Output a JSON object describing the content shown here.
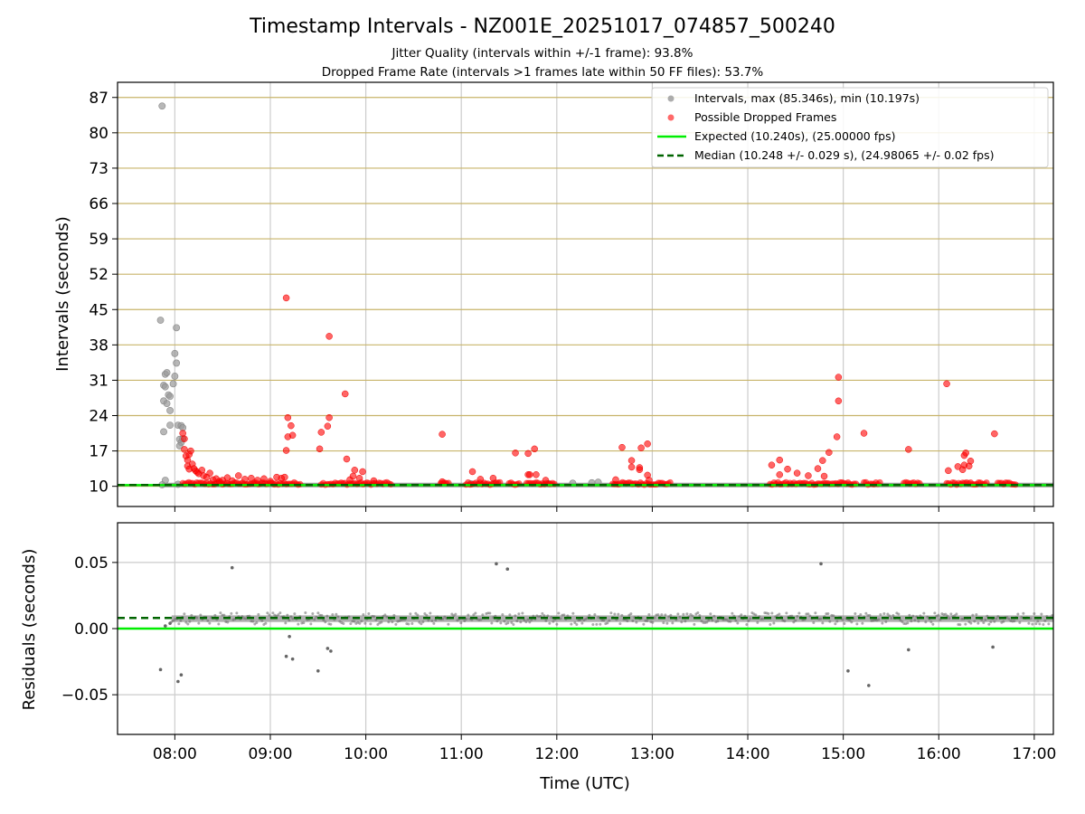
{
  "figure": {
    "title": "Timestamp Intervals - NZ001E_20251017_074857_500240",
    "subtitle_line1": "Jitter Quality (intervals within +/-1 frame): 93.8%",
    "subtitle_line2": "Dropped Frame Rate (intervals >1 frames late within 50 FF files): 53.7%"
  },
  "colors": {
    "intervals": "#808080",
    "dropped": "#ff0000",
    "expected": "#00ee00",
    "median": "#006400",
    "grid_y_top": "#c8b46a",
    "grid": "#cccccc"
  },
  "chart_data": [
    {
      "type": "scatter",
      "panel": "intervals",
      "xlabel": "",
      "ylabel": "Intervals (seconds)",
      "xlim": [
        "07:24",
        "17:12"
      ],
      "ylim": [
        6,
        90
      ],
      "yticks": [
        10,
        17,
        24,
        31,
        38,
        45,
        52,
        59,
        66,
        73,
        80,
        87
      ],
      "ytick_labels": [
        "10",
        "17",
        "24",
        "31",
        "38",
        "45",
        "52",
        "59",
        "66",
        "73",
        "80",
        "87"
      ],
      "grid": true,
      "legend_position": "top-right",
      "legend": [
        {
          "label": "Intervals, max (85.346s), min (10.197s)",
          "style": "marker",
          "color": "#999999"
        },
        {
          "label": "Possible Dropped Frames",
          "style": "marker",
          "color": "#ff4444"
        },
        {
          "label": "Expected (10.240s), (25.00000 fps)",
          "style": "solid",
          "color": "#00ee00"
        },
        {
          "label": "Median (10.248 +/- 0.029 s), (24.98065 +/- 0.02 fps)",
          "style": "dashed",
          "color": "#006400"
        }
      ],
      "expected": 10.24,
      "median": 10.248,
      "baseline_band": {
        "x": [
          "07:52",
          "17:12"
        ],
        "y": [
          9.8,
          10.7
        ]
      },
      "series": [
        {
          "name": "Intervals, max (85.346s), min (10.197s)",
          "points": [
            [
              "07:52",
              85.3
            ],
            [
              "07:51",
              42.9
            ],
            [
              "07:54",
              32.2
            ],
            [
              "07:55",
              32.5
            ],
            [
              "07:53",
              30.0
            ],
            [
              "07:54",
              29.7
            ],
            [
              "07:56",
              28.1
            ],
            [
              "07:53",
              26.9
            ],
            [
              "07:55",
              26.4
            ],
            [
              "07:57",
              27.8
            ],
            [
              "07:57",
              25.0
            ],
            [
              "07:53",
              20.8
            ],
            [
              "07:57",
              22.1
            ],
            [
              "07:59",
              30.3
            ],
            [
              "08:00",
              31.8
            ],
            [
              "08:01",
              34.4
            ],
            [
              "08:00",
              36.3
            ],
            [
              "08:01",
              41.4
            ],
            [
              "08:02",
              22.1
            ],
            [
              "08:04",
              22.0
            ],
            [
              "08:03",
              19.3
            ],
            [
              "08:04",
              18.7
            ],
            [
              "08:03",
              18.0
            ],
            [
              "08:05",
              21.6
            ],
            [
              "08:05",
              19.4
            ],
            [
              "07:54",
              11.2
            ],
            [
              "07:52",
              10.3
            ],
            [
              "08:02",
              10.4
            ],
            [
              "11:06",
              10.5
            ],
            [
              "11:55",
              10.5
            ],
            [
              "12:10",
              10.6
            ],
            [
              "12:22",
              10.7
            ],
            [
              "12:26",
              10.8
            ]
          ]
        },
        {
          "name": "Possible Dropped Frames",
          "points": [
            [
              "08:05",
              20.5
            ],
            [
              "08:06",
              19.4
            ],
            [
              "08:06",
              17.3
            ],
            [
              "08:07",
              16.0
            ],
            [
              "08:08",
              15.2
            ],
            [
              "08:09",
              16.3
            ],
            [
              "08:10",
              17.0
            ],
            [
              "08:08",
              14.0
            ],
            [
              "08:11",
              14.4
            ],
            [
              "08:12",
              13.5
            ],
            [
              "08:13",
              13.1
            ],
            [
              "08:09",
              13.4
            ],
            [
              "08:14",
              12.8
            ],
            [
              "08:15",
              12.5
            ],
            [
              "08:17",
              13.2
            ],
            [
              "08:18",
              12.1
            ],
            [
              "08:20",
              11.8
            ],
            [
              "08:22",
              12.6
            ],
            [
              "08:24",
              11.3
            ],
            [
              "08:26",
              11.5
            ],
            [
              "08:28",
              11.0
            ],
            [
              "08:30",
              11.2
            ],
            [
              "08:33",
              11.7
            ],
            [
              "08:36",
              11.1
            ],
            [
              "08:40",
              12.1
            ],
            [
              "08:44",
              11.4
            ],
            [
              "08:48",
              11.6
            ],
            [
              "08:52",
              11.2
            ],
            [
              "08:56",
              11.5
            ],
            [
              "09:00",
              11.0
            ],
            [
              "09:04",
              11.8
            ],
            [
              "09:07",
              11.6
            ],
            [
              "09:09",
              11.8
            ],
            [
              "09:10",
              17.1
            ],
            [
              "09:11",
              19.8
            ],
            [
              "09:11",
              23.6
            ],
            [
              "09:13",
              22.0
            ],
            [
              "09:14",
              20.1
            ],
            [
              "09:10",
              47.3
            ],
            [
              "09:31",
              17.4
            ],
            [
              "09:32",
              20.7
            ],
            [
              "09:36",
              21.9
            ],
            [
              "09:37",
              23.6
            ],
            [
              "09:37",
              39.7
            ],
            [
              "09:47",
              28.3
            ],
            [
              "09:48",
              15.4
            ],
            [
              "09:50",
              11.3
            ],
            [
              "09:52",
              12.0
            ],
            [
              "09:53",
              13.2
            ],
            [
              "09:56",
              11.6
            ],
            [
              "09:58",
              12.9
            ],
            [
              "10:05",
              11.1
            ],
            [
              "10:48",
              20.3
            ],
            [
              "10:48",
              10.9
            ],
            [
              "11:07",
              12.9
            ],
            [
              "11:12",
              11.4
            ],
            [
              "11:20",
              11.6
            ],
            [
              "11:34",
              16.6
            ],
            [
              "11:42",
              16.5
            ],
            [
              "11:42",
              12.3
            ],
            [
              "11:43",
              12.3
            ],
            [
              "11:46",
              17.4
            ],
            [
              "11:47",
              12.3
            ],
            [
              "11:53",
              11.2
            ],
            [
              "12:37",
              11.3
            ],
            [
              "12:41",
              17.7
            ],
            [
              "12:47",
              15.1
            ],
            [
              "12:47",
              13.8
            ],
            [
              "12:52",
              13.7
            ],
            [
              "12:52",
              13.3
            ],
            [
              "12:53",
              17.6
            ],
            [
              "12:57",
              18.4
            ],
            [
              "12:57",
              12.2
            ],
            [
              "12:58",
              11.2
            ],
            [
              "14:15",
              14.2
            ],
            [
              "14:20",
              15.2
            ],
            [
              "14:20",
              12.3
            ],
            [
              "14:25",
              13.4
            ],
            [
              "14:31",
              12.6
            ],
            [
              "14:38",
              12.1
            ],
            [
              "14:44",
              13.5
            ],
            [
              "14:47",
              15.1
            ],
            [
              "14:48",
              12.0
            ],
            [
              "14:51",
              16.7
            ],
            [
              "14:56",
              19.8
            ],
            [
              "14:57",
              26.9
            ],
            [
              "14:57",
              31.6
            ],
            [
              "15:13",
              20.5
            ],
            [
              "15:41",
              17.3
            ],
            [
              "16:05",
              30.3
            ],
            [
              "16:06",
              13.1
            ],
            [
              "16:12",
              13.9
            ],
            [
              "16:15",
              13.3
            ],
            [
              "16:16",
              14.2
            ],
            [
              "16:16",
              16.1
            ],
            [
              "16:17",
              16.6
            ],
            [
              "16:19",
              14.0
            ],
            [
              "16:20",
              15.0
            ],
            [
              "16:35",
              20.4
            ]
          ],
          "clusters": [
            [
              "08:05",
              "08:50"
            ],
            [
              "08:50",
              "09:14"
            ],
            [
              "09:15",
              "09:19"
            ],
            [
              "09:32",
              "10:16"
            ],
            [
              "10:47",
              "10:53"
            ],
            [
              "11:03",
              "11:25"
            ],
            [
              "11:30",
              "11:37"
            ],
            [
              "11:41",
              "11:59"
            ],
            [
              "12:35",
              "13:12"
            ],
            [
              "14:14",
              "14:52"
            ],
            [
              "14:53",
              "15:09"
            ],
            [
              "15:13",
              "15:23"
            ],
            [
              "15:38",
              "15:48"
            ],
            [
              "16:05",
              "16:30"
            ],
            [
              "16:37",
              "16:49"
            ]
          ]
        }
      ]
    },
    {
      "type": "scatter",
      "panel": "residuals",
      "xlabel": "Time (UTC)",
      "ylabel": "Residuals (seconds)",
      "xlim": [
        "07:24",
        "17:12"
      ],
      "ylim": [
        -0.08,
        0.08
      ],
      "yticks": [
        -0.05,
        0.0,
        0.05
      ],
      "ytick_labels": [
        "−0.05",
        "0.00",
        "0.05"
      ],
      "xticks": [
        "08:00",
        "09:00",
        "10:00",
        "11:00",
        "12:00",
        "13:00",
        "14:00",
        "15:00",
        "16:00",
        "17:00"
      ],
      "grid": true,
      "expected": 0.0,
      "median": 0.008,
      "residual_band": {
        "x": [
          "07:58",
          "17:12"
        ],
        "y": [
          0.005,
          0.01
        ]
      },
      "series": [
        {
          "name": "residuals",
          "points": [
            [
              "07:51",
              -0.031
            ],
            [
              "08:02",
              -0.04
            ],
            [
              "08:04",
              -0.035
            ],
            [
              "07:54",
              0.002
            ],
            [
              "07:57",
              0.004
            ],
            [
              "08:36",
              0.046
            ],
            [
              "09:10",
              -0.021
            ],
            [
              "09:12",
              -0.006
            ],
            [
              "09:14",
              -0.023
            ],
            [
              "09:30",
              -0.032
            ],
            [
              "09:36",
              -0.015
            ],
            [
              "09:38",
              -0.017
            ],
            [
              "11:22",
              0.049
            ],
            [
              "11:29",
              0.045
            ],
            [
              "14:46",
              0.049
            ],
            [
              "15:03",
              -0.032
            ],
            [
              "15:16",
              -0.043
            ],
            [
              "15:41",
              -0.016
            ],
            [
              "16:34",
              -0.014
            ]
          ]
        }
      ]
    }
  ]
}
